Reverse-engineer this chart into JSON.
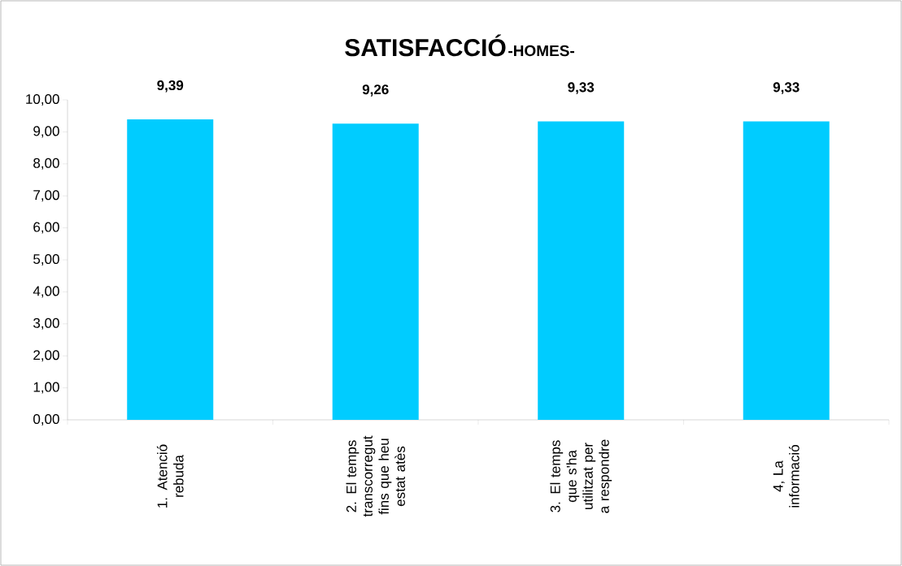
{
  "chart_data": {
    "type": "bar",
    "title": "SATISFACCIÓ",
    "subtitle": "-HOMES-",
    "categories": [
      "1. Atenció rebuda",
      "2. El temps transcorregut fins que heu estat atès",
      "3. El temps que s'ha utilitzat per a respondre",
      "4, La informació"
    ],
    "values": [
      9.39,
      9.26,
      9.33,
      9.33
    ],
    "value_labels": [
      "9,39",
      "9,26",
      "9,33",
      "9,33"
    ],
    "color": "#00ccff",
    "ylim": [
      0,
      10
    ],
    "yticks": [
      {
        "value": 0,
        "label": "0,00"
      },
      {
        "value": 1,
        "label": "1,00"
      },
      {
        "value": 2,
        "label": "2,00"
      },
      {
        "value": 3,
        "label": "3,00"
      },
      {
        "value": 4,
        "label": "4,00"
      },
      {
        "value": 5,
        "label": "5,00"
      },
      {
        "value": 6,
        "label": "6,00"
      },
      {
        "value": 7,
        "label": "7,00"
      },
      {
        "value": 8,
        "label": "8,00"
      },
      {
        "value": 9,
        "label": "9,00"
      },
      {
        "value": 10,
        "label": "10,00"
      }
    ],
    "grid": false
  }
}
